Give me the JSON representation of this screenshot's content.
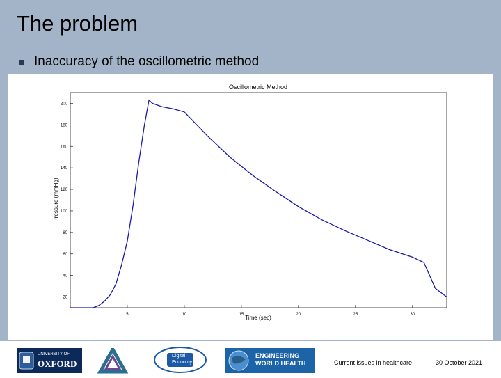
{
  "slide": {
    "title": "The problem",
    "bullet": "Inaccuracy of the oscillometric method"
  },
  "chart_data": {
    "type": "line",
    "title": "Oscillometric Method",
    "xlabel": "Time (sec)",
    "ylabel": "Pressure (mmHg)",
    "xlim": [
      0,
      33
    ],
    "ylim": [
      10,
      210
    ],
    "x_ticks": [
      "5",
      "10",
      "15",
      "20",
      "25",
      "30"
    ],
    "y_ticks": [
      "20",
      "40",
      "60",
      "80",
      "100",
      "120",
      "140",
      "160",
      "180",
      "200"
    ],
    "grid": false,
    "series": [
      {
        "color": "#1a1aa8",
        "x": [
          0,
          2,
          2.5,
          3,
          3.5,
          4,
          4.5,
          5,
          5.5,
          6,
          6.5,
          6.9,
          7.2,
          8,
          9,
          10,
          12,
          14,
          16,
          18,
          20,
          22,
          24,
          26,
          28,
          30,
          31,
          32,
          33
        ],
        "y": [
          10,
          10,
          12,
          16,
          22,
          32,
          50,
          72,
          105,
          145,
          180,
          203,
          200,
          197,
          195,
          192,
          170,
          150,
          133,
          118,
          104,
          92,
          82,
          73,
          64,
          57,
          52,
          28,
          20
        ]
      }
    ]
  },
  "footer": {
    "text": "Current issues in healthcare",
    "date": "30 October 2021",
    "logos": [
      {
        "icon": "oxford-logo",
        "line1": "UNIVERSITY OF",
        "line2": "OXFORD"
      },
      {
        "icon": "triangle-knot-logo"
      },
      {
        "icon": "digital-economy-logo",
        "line1": "Digital",
        "line2": "Economy"
      },
      {
        "icon": "engineering-world-health-logo",
        "line1": "ENGINEERING",
        "line2": "WORLD HEALTH"
      }
    ]
  }
}
